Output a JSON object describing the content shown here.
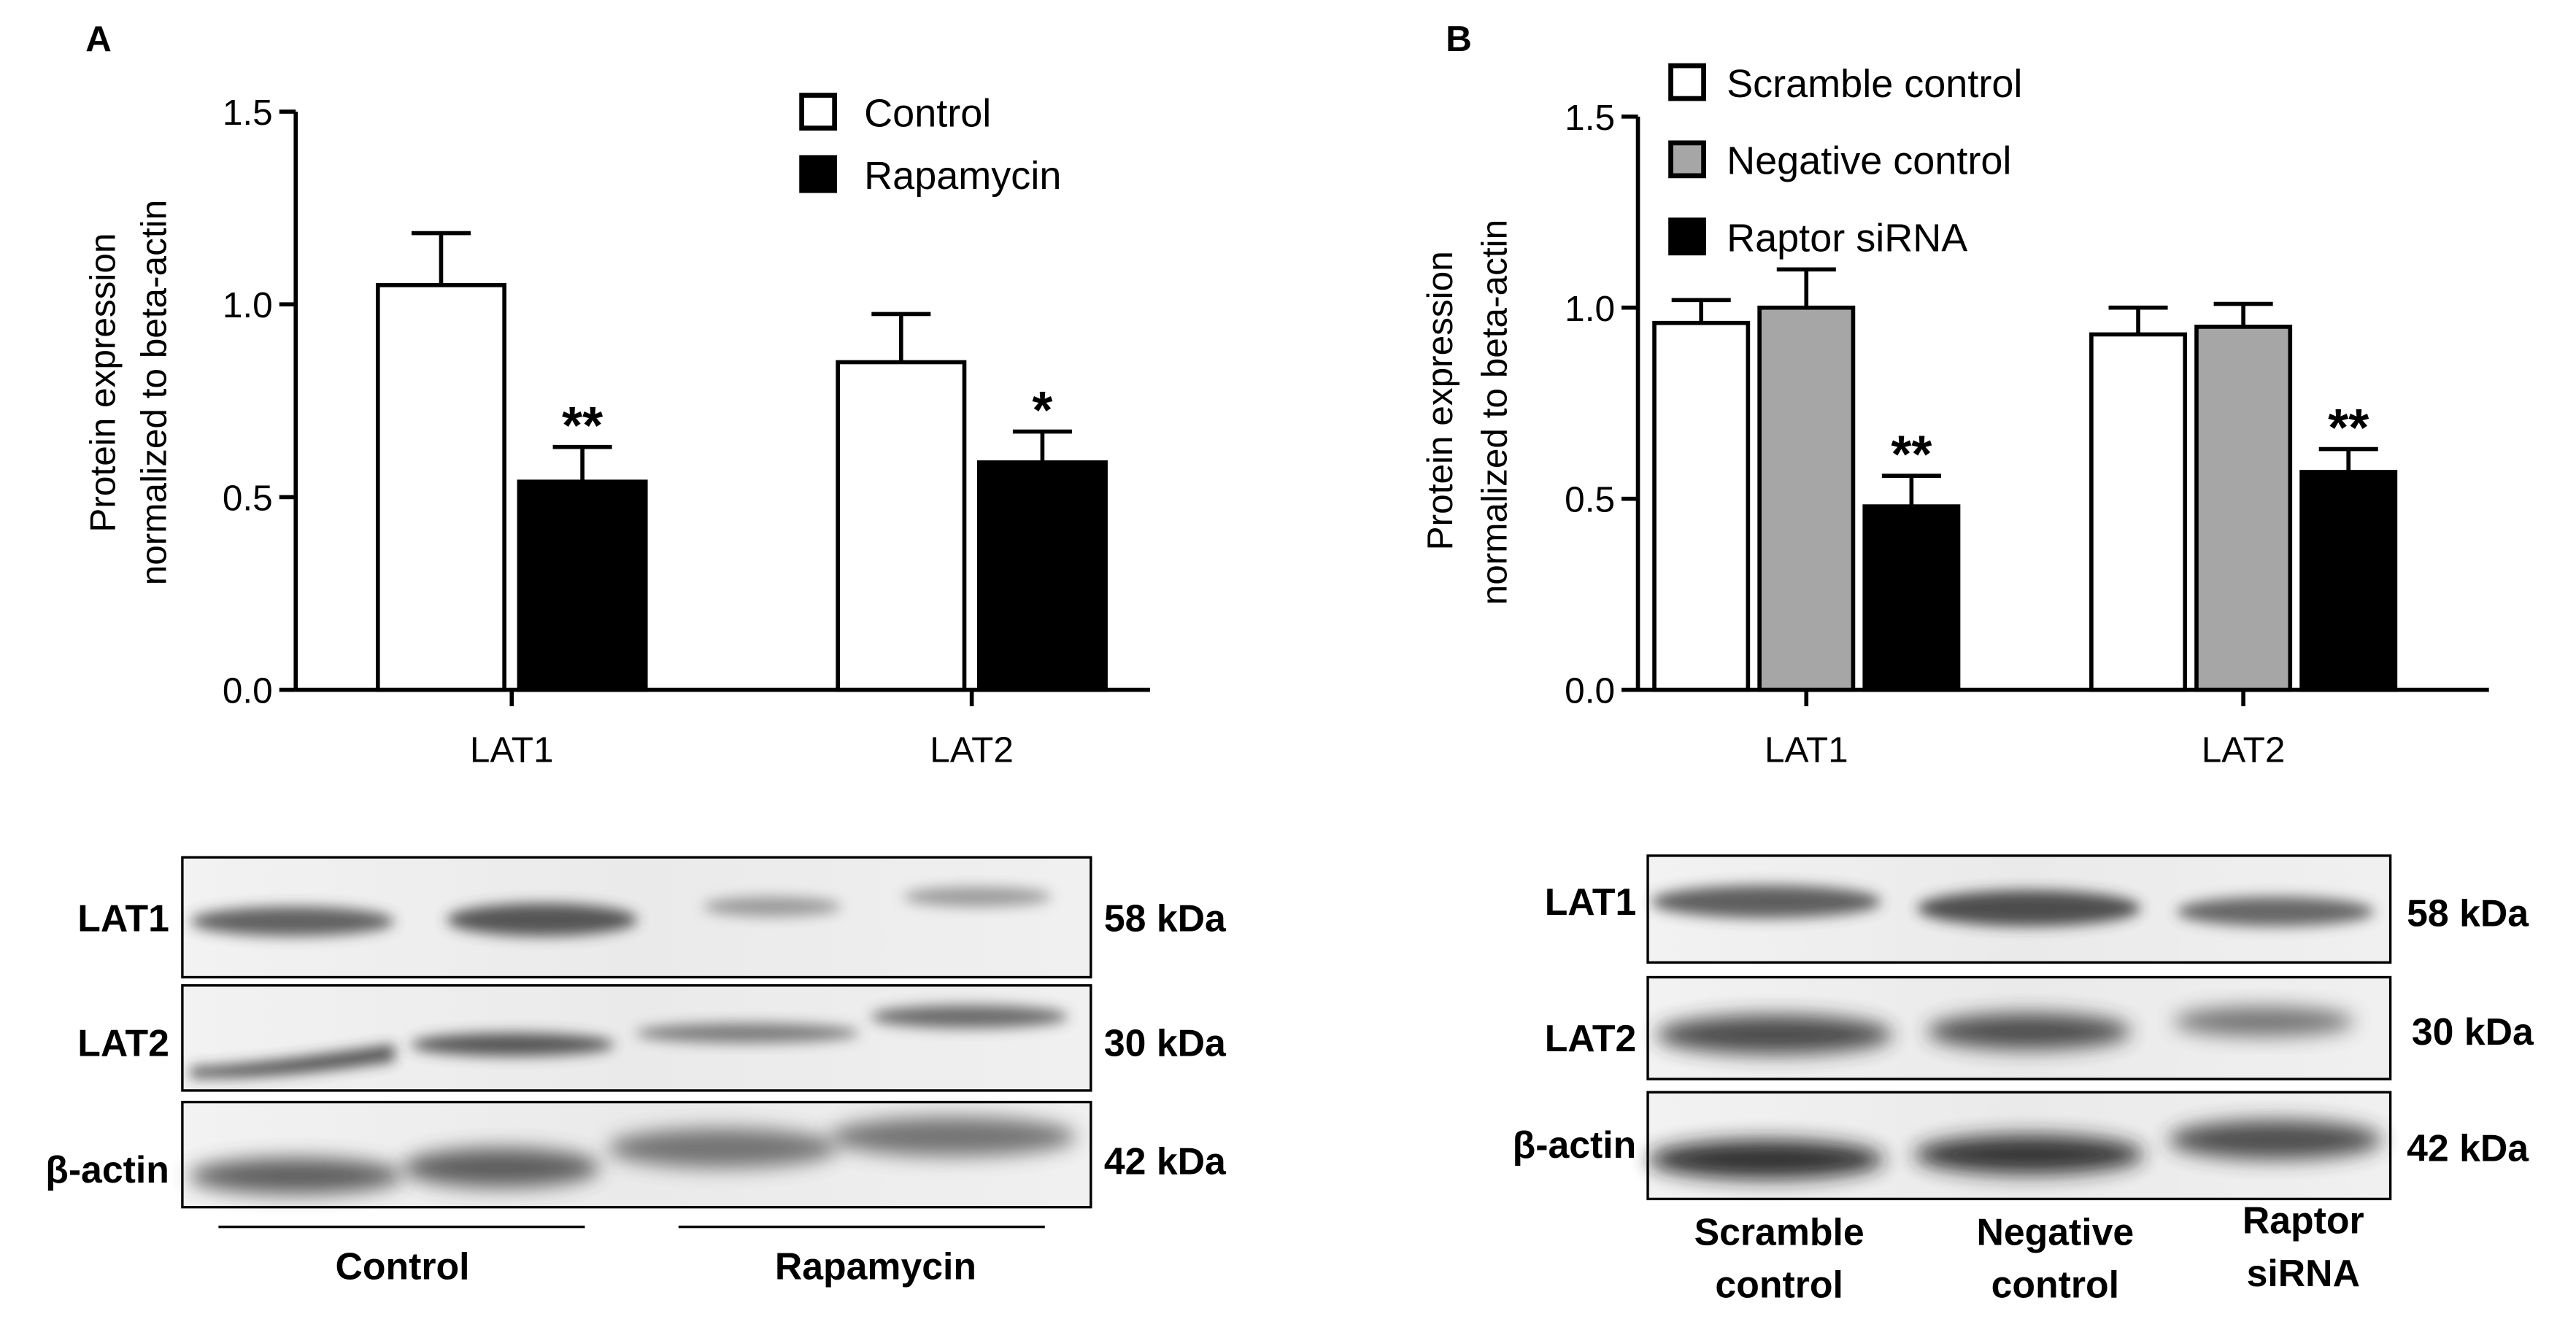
{
  "panels": [
    {
      "letter": "A",
      "chart_data": {
        "type": "bar",
        "ylabel": [
          "Protein expression",
          "normalized to beta-actin"
        ],
        "xlabel": "",
        "ylim": [
          0,
          1.5
        ],
        "yticks": [
          0,
          0.5,
          1.0,
          1.5
        ],
        "ytick_labels": [
          "0.0",
          "0.5",
          "1.0",
          "1.5"
        ],
        "categories": [
          "LAT1",
          "LAT2"
        ],
        "series": [
          {
            "name": "Control",
            "fill": "#ffffff",
            "values": [
              1.05,
              0.85
            ],
            "errors": [
              0.135,
              0.125
            ],
            "sig": [
              "",
              ""
            ]
          },
          {
            "name": "Rapamycin",
            "fill": "#000000",
            "values": [
              0.54,
              0.59
            ],
            "errors": [
              0.09,
              0.08
            ],
            "sig": [
              "**",
              "*"
            ]
          }
        ],
        "legend_position": "top-right",
        "grid": false
      },
      "blot": {
        "rows": [
          {
            "protein": "LAT1",
            "size": "58 kDa"
          },
          {
            "protein": "LAT2",
            "size": "30 kDa"
          },
          {
            "protein": "β-actin",
            "size": "42 kDa"
          }
        ],
        "groups": [
          "Control",
          "Rapamycin"
        ]
      }
    },
    {
      "letter": "B",
      "chart_data": {
        "type": "bar",
        "ylabel": [
          "Protein expression",
          "normalized to beta-actin"
        ],
        "xlabel": "",
        "ylim": [
          0,
          1.5
        ],
        "yticks": [
          0,
          0.5,
          1.0,
          1.5
        ],
        "ytick_labels": [
          "0.0",
          "0.5",
          "1.0",
          "1.5"
        ],
        "categories": [
          "LAT1",
          "LAT2"
        ],
        "series": [
          {
            "name": "Scramble control",
            "fill": "#ffffff",
            "values": [
              0.96,
              0.93
            ],
            "errors": [
              0.06,
              0.07
            ],
            "sig": [
              "",
              ""
            ]
          },
          {
            "name": "Negative control",
            "fill": "#a6a6a6",
            "values": [
              1.0,
              0.95
            ],
            "errors": [
              0.1,
              0.06
            ],
            "sig": [
              "",
              ""
            ]
          },
          {
            "name": "Raptor siRNA",
            "fill": "#000000",
            "values": [
              0.48,
              0.57
            ],
            "errors": [
              0.08,
              0.06
            ],
            "sig": [
              "**",
              "**"
            ]
          }
        ],
        "legend_position": "top",
        "grid": false
      },
      "blot": {
        "rows": [
          {
            "protein": "LAT1",
            "size": "58 kDa"
          },
          {
            "protein": "LAT2",
            "size": "30 kDa"
          },
          {
            "protein": "β-actin",
            "size": "42 kDa"
          }
        ],
        "lanes": [
          [
            "Scramble",
            "control"
          ],
          [
            "Negative",
            "control"
          ],
          [
            "Raptor",
            "siRNA"
          ]
        ]
      }
    }
  ]
}
